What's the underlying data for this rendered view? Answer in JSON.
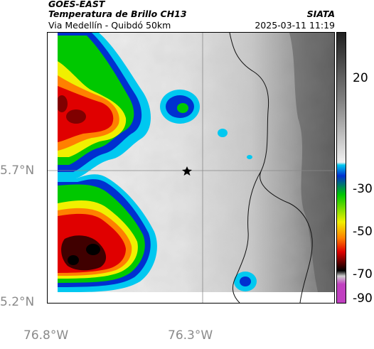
{
  "header": {
    "satellite": "GOES-EAST",
    "title": "Temperatura de Brillo CH13",
    "organization": "SIATA",
    "route": "Via Medellín - Quibdó 50km",
    "timestamp": "2025-03-11 11:19"
  },
  "map": {
    "latitude_labels": [
      "5.7°N",
      "5.2°N"
    ],
    "longitude_labels": [
      "76.8°W",
      "76.3°W"
    ],
    "marker": "star-marker",
    "gridlines": "on"
  },
  "colorbar": {
    "ticks": [
      "20",
      "-30",
      "-50",
      "-70",
      "-90"
    ],
    "colors": {
      "warm_gray_dark": "#3a3a3a",
      "warm_gray_light": "#e8e8e8",
      "cyan": "#00c8f0",
      "blue": "#0030d0",
      "green": "#00c800",
      "yellow": "#f0f000",
      "orange": "#ff8000",
      "red": "#e00000",
      "darkred": "#400000",
      "magenta": "#c040c0"
    }
  }
}
